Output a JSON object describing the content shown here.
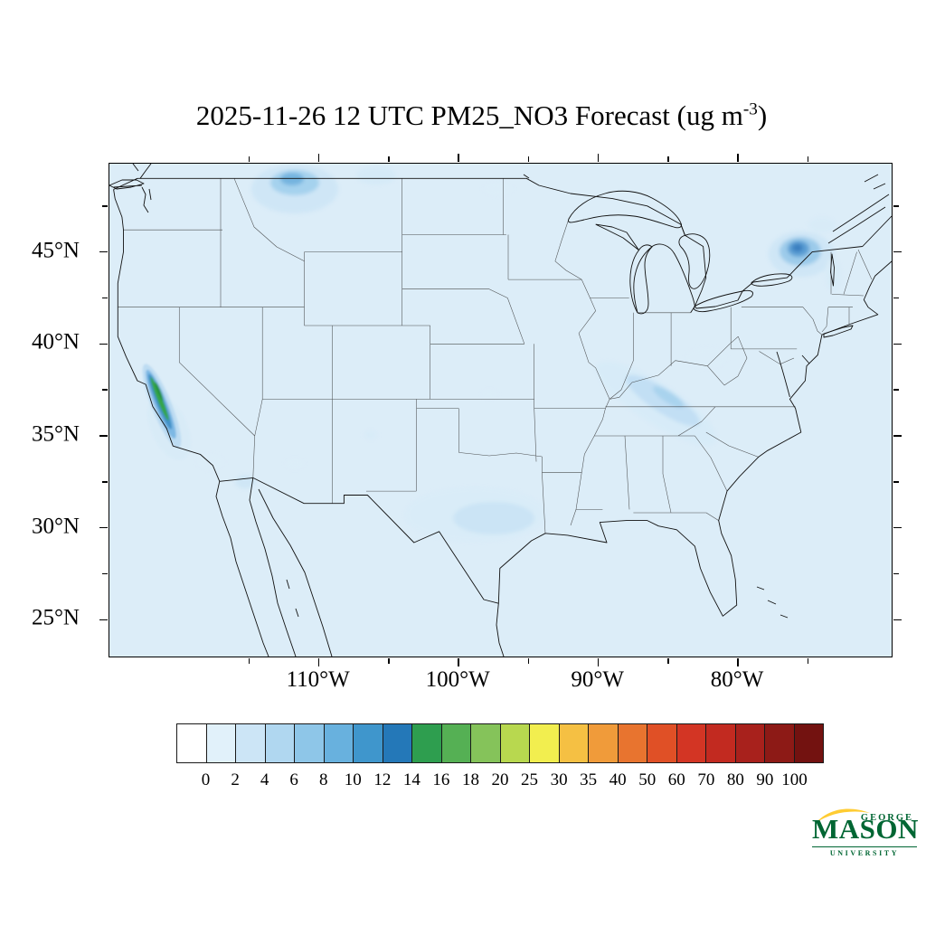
{
  "title": {
    "text": "2025-11-26 12 UTC PM25_NO3 Forecast (ug m",
    "exponent": "-3",
    "suffix": ")"
  },
  "map": {
    "background_color": "#dcedf8",
    "lat_ticks": [
      {
        "label": "45°N",
        "lat": 45
      },
      {
        "label": "40°N",
        "lat": 40
      },
      {
        "label": "35°N",
        "lat": 35
      },
      {
        "label": "30°N",
        "lat": 30
      },
      {
        "label": "25°N",
        "lat": 25
      }
    ],
    "lon_ticks": [
      {
        "label": "110°W",
        "lon": 110
      },
      {
        "label": "100°W",
        "lon": 100
      },
      {
        "label": "90°W",
        "lon": 90
      },
      {
        "label": "80°W",
        "lon": 80
      }
    ],
    "lon_minor_ticks": [
      115,
      105,
      95,
      85,
      75
    ],
    "lat_minor_ticks": [
      47.5,
      42.5,
      37.5,
      32.5,
      27.5
    ]
  },
  "colorbar": {
    "colors": [
      "#ffffff",
      "#e1f1fa",
      "#cce5f6",
      "#b0d7f0",
      "#8ec6e8",
      "#68b1de",
      "#3f96cc",
      "#2478b8",
      "#2e9e4f",
      "#55b054",
      "#85c35a",
      "#b8d84f",
      "#f2ee4f",
      "#f5c043",
      "#f09b3a",
      "#e8742f",
      "#e05026",
      "#d33524",
      "#c22a20",
      "#a8211c",
      "#8d1a16",
      "#731210"
    ],
    "tick_labels": [
      "0",
      "2",
      "4",
      "6",
      "8",
      "10",
      "12",
      "14",
      "16",
      "18",
      "20",
      "25",
      "30",
      "35",
      "40",
      "50",
      "60",
      "70",
      "80",
      "90",
      "100"
    ]
  },
  "logo": {
    "george": "GEORGE",
    "mason": "MASON",
    "university": "UNIVERSITY",
    "green_color": "#006633",
    "gold_color": "#ffcc33"
  }
}
